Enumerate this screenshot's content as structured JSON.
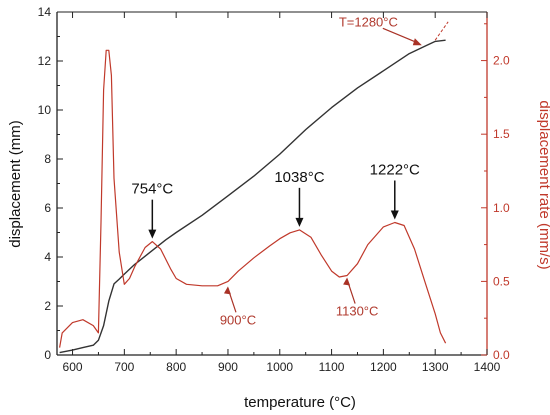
{
  "chart_data": {
    "type": "line",
    "title": "",
    "xlabel": "temperature (°C)",
    "ylabel_left": "displacement (mm)",
    "ylabel_right": "displacement rate (mm/s)",
    "xlim": [
      570,
      1400
    ],
    "ylim_left": [
      0,
      14
    ],
    "ylim_right": [
      0.0,
      2.33
    ],
    "x_ticks": [
      600,
      700,
      800,
      900,
      1000,
      1100,
      1200,
      1300,
      1400
    ],
    "y_left_ticks": [
      0,
      2,
      4,
      6,
      8,
      10,
      12,
      14
    ],
    "y_right_ticks": [
      "0.0",
      "0.5",
      "1.0",
      "1.5",
      "2.0"
    ],
    "colors": {
      "displacement": "#333333",
      "rate": "#c0392b",
      "right_axis": "#c0392b",
      "arrow_black": "#111111",
      "arrow_red": "#a93226"
    },
    "series": [
      {
        "axis": "left",
        "color": "#333333",
        "x": [
          575,
          600,
          620,
          640,
          650,
          660,
          670,
          680,
          690,
          700,
          720,
          750,
          780,
          800,
          850,
          900,
          950,
          1000,
          1050,
          1100,
          1150,
          1200,
          1250,
          1280,
          1300,
          1320
        ],
        "y": [
          0.1,
          0.2,
          0.3,
          0.4,
          0.6,
          1.2,
          2.2,
          2.9,
          3.1,
          3.3,
          3.7,
          4.2,
          4.7,
          5.0,
          5.7,
          6.5,
          7.3,
          8.2,
          9.2,
          10.1,
          10.9,
          11.6,
          12.3,
          12.6,
          12.8,
          12.85
        ]
      },
      {
        "axis": "right",
        "color": "#c0392b",
        "x": [
          575,
          580,
          600,
          620,
          640,
          650,
          655,
          660,
          665,
          670,
          675,
          680,
          690,
          700,
          710,
          720,
          740,
          754,
          770,
          790,
          800,
          820,
          850,
          880,
          900,
          920,
          950,
          980,
          1000,
          1020,
          1038,
          1060,
          1080,
          1100,
          1115,
          1130,
          1150,
          1170,
          1200,
          1222,
          1240,
          1260,
          1280,
          1300,
          1310,
          1320
        ],
        "y": [
          0.05,
          0.15,
          0.22,
          0.24,
          0.2,
          0.15,
          0.9,
          1.8,
          2.07,
          2.07,
          1.9,
          1.2,
          0.7,
          0.48,
          0.52,
          0.6,
          0.73,
          0.77,
          0.72,
          0.58,
          0.52,
          0.48,
          0.47,
          0.47,
          0.5,
          0.57,
          0.66,
          0.74,
          0.79,
          0.83,
          0.85,
          0.8,
          0.68,
          0.57,
          0.53,
          0.54,
          0.62,
          0.75,
          0.87,
          0.9,
          0.88,
          0.72,
          0.5,
          0.28,
          0.15,
          0.08
        ]
      }
    ],
    "annotations": [
      {
        "text": "754°C",
        "x": 754,
        "axis": "right",
        "y": 0.77,
        "style": "black",
        "arrow": "down"
      },
      {
        "text": "1038°C",
        "x": 1038,
        "axis": "right",
        "y": 0.85,
        "style": "black",
        "arrow": "down"
      },
      {
        "text": "1222°C",
        "x": 1222,
        "axis": "right",
        "y": 0.9,
        "style": "black",
        "arrow": "down"
      },
      {
        "text": "900°C",
        "x": 900,
        "axis": "right",
        "y": 0.48,
        "style": "red",
        "arrow": "up"
      },
      {
        "text": "1130°C",
        "x": 1130,
        "axis": "right",
        "y": 0.54,
        "style": "red",
        "arrow": "up"
      },
      {
        "text": "T=1280°C",
        "x": 1280,
        "axis": "left",
        "y": 12.6,
        "style": "red",
        "arrow": "diag"
      }
    ]
  }
}
